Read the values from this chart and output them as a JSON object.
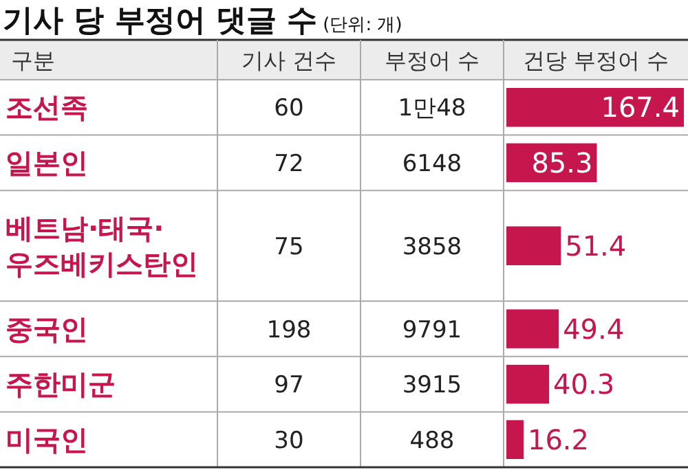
{
  "chart_data": [
    {
      "type": "other",
      "title": "기사 당 부정어 댓글 수",
      "subtitle": "(단위: 개)",
      "ylabel": "구분",
      "categories": [
        "기사 건수",
        "부정어 수"
      ],
      "y_categories": [
        "조선족",
        "일본인",
        "베트남·태국·우즈베키스탄인",
        "중국인",
        "주한미군",
        "미국인"
      ],
      "cell_labels": [
        [
          "60",
          "1만48"
        ],
        [
          "72",
          "6148"
        ],
        [
          "75",
          "3858"
        ],
        [
          "198",
          "9791"
        ],
        [
          "97",
          "3915"
        ],
        [
          "30",
          "488"
        ]
      ]
    },
    {
      "type": "bar",
      "orientation": "horizontal",
      "xlabel": "건당 부정어 수",
      "categories": [
        null,
        null,
        null,
        null,
        null,
        null
      ],
      "values": [
        167.4,
        85.3,
        51.4,
        49.4,
        40.3,
        16.2
      ],
      "color": "#c5164d",
      "data_labels": true
    }
  ]
}
